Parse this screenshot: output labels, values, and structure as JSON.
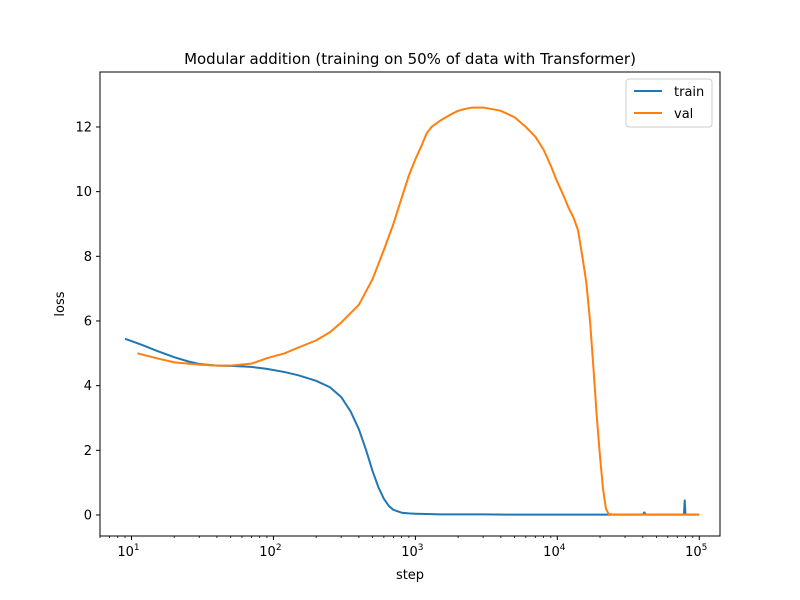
{
  "chart_data": {
    "type": "line",
    "title": "Modular addition (training on 50% of data with Transformer)",
    "xlabel": "step",
    "ylabel": "loss",
    "xscale": "log",
    "xlim": [
      6,
      140000
    ],
    "ylim": [
      -0.65,
      13.7
    ],
    "grid": false,
    "legend_position": "top-right",
    "yticks": [
      0,
      2,
      4,
      6,
      8,
      10,
      12
    ],
    "ytick_labels": [
      "0",
      "2",
      "4",
      "6",
      "8",
      "10",
      "12"
    ],
    "xticks": [
      10,
      100,
      1000,
      10000,
      100000
    ],
    "xtick_labels": [
      {
        "base": "10",
        "exp": "1"
      },
      {
        "base": "10",
        "exp": "2"
      },
      {
        "base": "10",
        "exp": "3"
      },
      {
        "base": "10",
        "exp": "4"
      },
      {
        "base": "10",
        "exp": "5"
      }
    ],
    "series": [
      {
        "name": "train",
        "color": "#1f77b4",
        "x": [
          9,
          12,
          15,
          20,
          25,
          30,
          40,
          50,
          70,
          90,
          120,
          150,
          200,
          250,
          300,
          350,
          400,
          450,
          500,
          550,
          600,
          650,
          700,
          800,
          900,
          1000,
          1200,
          1500,
          2000,
          3000,
          5000,
          8000,
          10000,
          15000,
          20000,
          30000,
          40000,
          41000,
          42000,
          50000,
          60000,
          78000,
          79000,
          80000,
          90000,
          100000
        ],
        "y": [
          5.45,
          5.25,
          5.08,
          4.88,
          4.75,
          4.67,
          4.62,
          4.61,
          4.58,
          4.52,
          4.42,
          4.32,
          4.15,
          3.95,
          3.65,
          3.2,
          2.65,
          2.0,
          1.35,
          0.85,
          0.5,
          0.28,
          0.16,
          0.07,
          0.05,
          0.04,
          0.03,
          0.02,
          0.02,
          0.02,
          0.01,
          0.01,
          0.01,
          0.01,
          0.01,
          0.01,
          0.01,
          0.08,
          0.01,
          0.01,
          0.01,
          0.01,
          0.45,
          0.01,
          0.01,
          0.01
        ]
      },
      {
        "name": "val",
        "color": "#ff7f0e",
        "x": [
          11,
          15,
          20,
          30,
          40,
          50,
          70,
          90,
          120,
          150,
          200,
          250,
          300,
          400,
          500,
          600,
          700,
          800,
          900,
          1000,
          1100,
          1200,
          1300,
          1500,
          1800,
          2000,
          2200,
          2500,
          3000,
          3500,
          4000,
          5000,
          6000,
          7000,
          8000,
          9000,
          10000,
          11000,
          12000,
          13000,
          14000,
          15000,
          16000,
          17000,
          18000,
          19000,
          20000,
          21000,
          22000,
          23000,
          25000,
          30000,
          40000,
          60000,
          80000,
          100000
        ],
        "y": [
          5.0,
          4.85,
          4.72,
          4.65,
          4.62,
          4.62,
          4.68,
          4.85,
          5.0,
          5.18,
          5.4,
          5.65,
          5.95,
          6.5,
          7.3,
          8.2,
          9.0,
          9.8,
          10.5,
          11.0,
          11.4,
          11.8,
          12.0,
          12.2,
          12.4,
          12.5,
          12.55,
          12.6,
          12.6,
          12.55,
          12.5,
          12.3,
          12.0,
          11.7,
          11.3,
          10.8,
          10.3,
          9.9,
          9.5,
          9.2,
          8.8,
          8.0,
          7.2,
          6.0,
          4.5,
          3.0,
          1.8,
          0.8,
          0.2,
          0.03,
          0.01,
          0.01,
          0.01,
          0.01,
          0.01,
          0.01
        ]
      }
    ]
  }
}
